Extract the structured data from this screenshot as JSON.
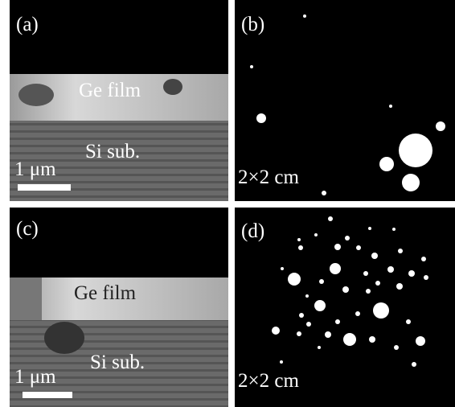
{
  "panels": [
    {
      "label": "(a)",
      "film": "Ge film",
      "substrate": "Si sub.",
      "scale": "1 μm"
    },
    {
      "label": "(b)",
      "size": "2×2 cm"
    },
    {
      "label": "(c)",
      "film": "Ge film",
      "substrate": "Si sub.",
      "scale": "1 μm"
    },
    {
      "label": "(d)",
      "size": "2×2 cm"
    }
  ]
}
